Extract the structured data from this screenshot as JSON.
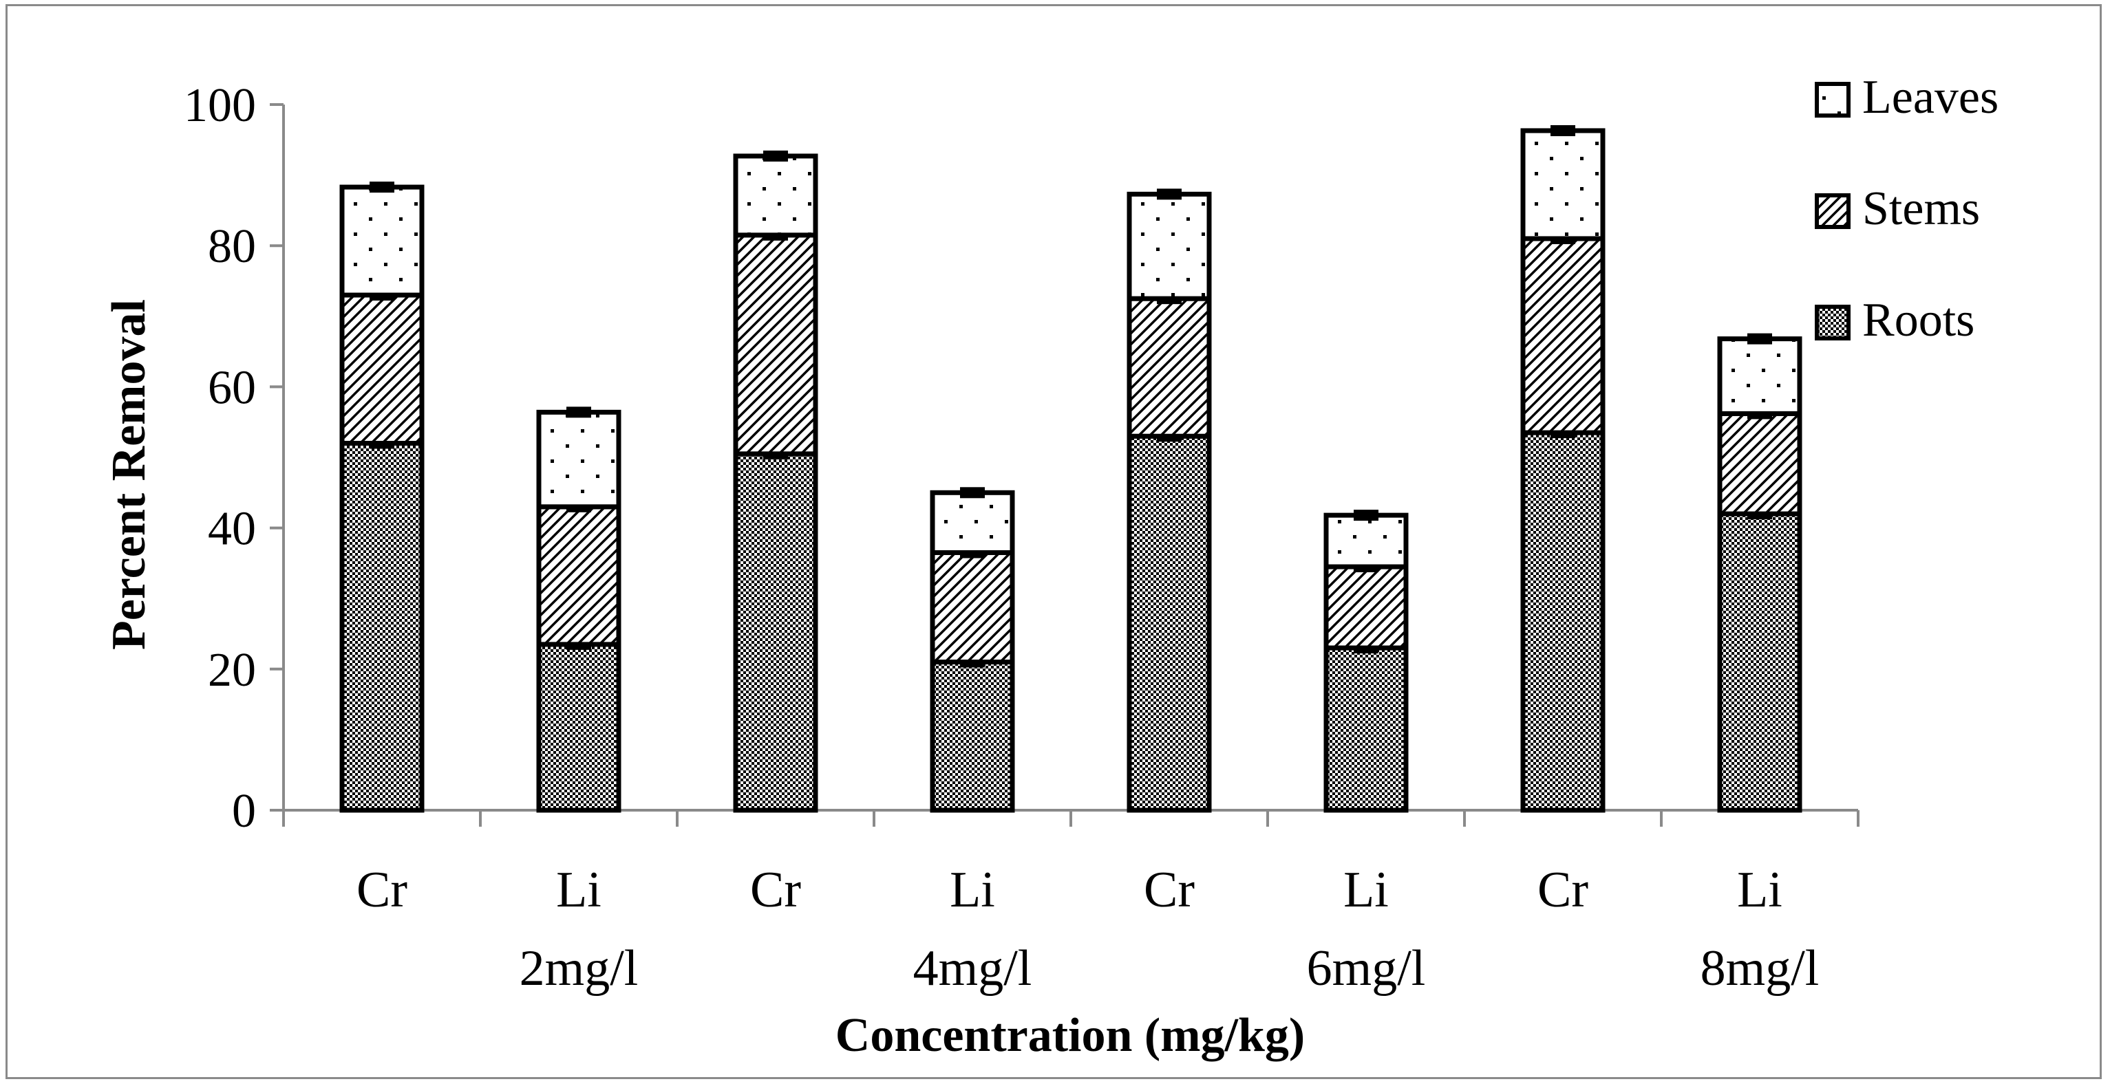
{
  "chart_data": {
    "type": "bar",
    "stacked": true,
    "title": "",
    "xlabel": "Concentration (mg/kg)",
    "ylabel": "Percent Removal",
    "ylim": [
      0,
      100
    ],
    "yticks": [
      0,
      20,
      40,
      60,
      80,
      100
    ],
    "grid": false,
    "legend_position": "top-right",
    "categories": [
      "Cr",
      "Li",
      "Cr",
      "Li",
      "Cr",
      "Li",
      "Cr",
      "Li"
    ],
    "groups": [
      {
        "label": "2mg/l",
        "members": [
          0,
          1
        ]
      },
      {
        "label": "4mg/l",
        "members": [
          2,
          3
        ]
      },
      {
        "label": "6mg/l",
        "members": [
          4,
          5
        ]
      },
      {
        "label": "8mg/l",
        "members": [
          6,
          7
        ]
      }
    ],
    "series": [
      {
        "name": "Roots",
        "pattern": "checker",
        "values": [
          52,
          23.5,
          50.5,
          21,
          53,
          23,
          53.5,
          42
        ]
      },
      {
        "name": "Stems",
        "pattern": "diagonal",
        "values": [
          21,
          19.5,
          31,
          15.5,
          19.5,
          11.5,
          27.5,
          14.2
        ]
      },
      {
        "name": "Leaves",
        "pattern": "dots",
        "values": [
          15.3,
          13.4,
          11.2,
          8.5,
          14.8,
          7.3,
          15.3,
          10.6
        ]
      }
    ],
    "legend_order": [
      "Leaves",
      "Stems",
      "Roots"
    ],
    "colors": {
      "outline": "#000000",
      "axis": "#8a8a8a",
      "fill": "#ffffff",
      "ink": "#000000"
    }
  }
}
